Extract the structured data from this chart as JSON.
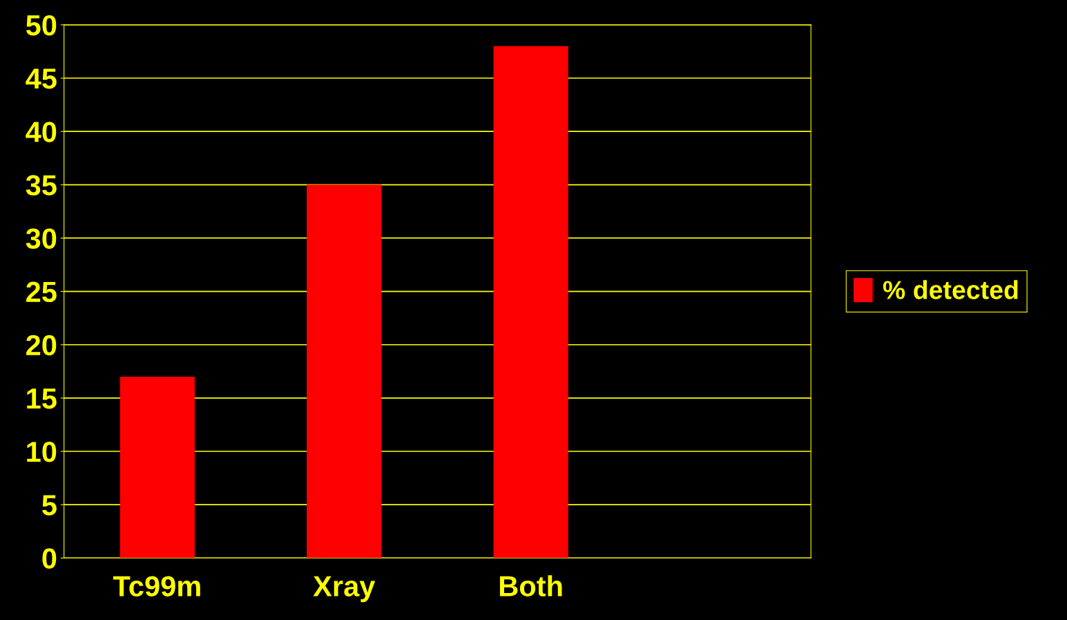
{
  "chart_data": {
    "type": "bar",
    "categories": [
      "Tc99m",
      "Xray",
      "Both",
      null
    ],
    "series": [
      {
        "name": "% detected",
        "color": "#ff0000",
        "values": [
          17,
          35,
          48,
          null
        ]
      }
    ],
    "ylim": [
      0,
      50
    ],
    "yticks": [
      0,
      5,
      10,
      15,
      20,
      25,
      30,
      35,
      40,
      45,
      50
    ],
    "grid": "y",
    "legend": "right"
  }
}
